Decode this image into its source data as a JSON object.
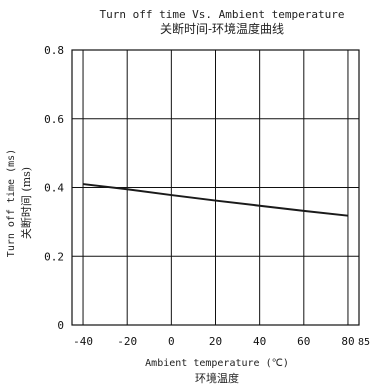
{
  "chart_data": {
    "type": "line",
    "title": "Turn off time Vs. Ambient temperature",
    "title_cn": "关断时间-环境温度曲线",
    "xlabel": "Ambient temperature (℃)",
    "xlabel_cn": "环境温度",
    "ylabel": "Turn off time (ms)",
    "ylabel_cn": "关断时间 (ms)",
    "xlim": [
      -45,
      85
    ],
    "ylim": [
      0,
      0.8
    ],
    "x_ticks": [
      -40,
      -20,
      0,
      20,
      40,
      60,
      80
    ],
    "x_tick_labels": [
      "-40",
      "-20",
      "0",
      "20",
      "40",
      "60",
      "80"
    ],
    "x_end_label": "85",
    "y_ticks": [
      0,
      0.2,
      0.4,
      0.6,
      0.8
    ],
    "y_tick_labels": [
      "0",
      "0.2",
      "0.4",
      "0.6",
      "0.8"
    ],
    "grid": true,
    "series": [
      {
        "x": [
          -40,
          -20,
          0,
          20,
          40,
          60,
          80
        ],
        "values": [
          0.41,
          0.395,
          0.378,
          0.362,
          0.347,
          0.332,
          0.318
        ],
        "color": "#1a1a1a"
      }
    ]
  }
}
